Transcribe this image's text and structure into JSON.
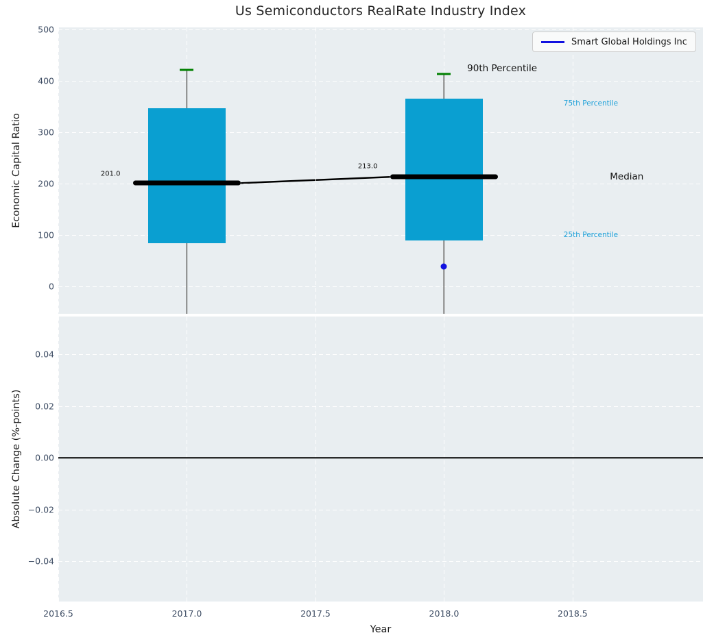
{
  "title": "Us Semiconductors RealRate Industry Index",
  "legend": {
    "label": "Smart Global Holdings Inc"
  },
  "colors": {
    "bar": "#0a9fd1",
    "percentile_cap": "#008000",
    "whisker": "#858585",
    "median": "#000000",
    "company_blue": "#1212e0",
    "cyan_text": "#1b9fd8",
    "axes_bg": "#e9eef1",
    "tick_text": "#3d4c63"
  },
  "chart_data": [
    {
      "type": "bar",
      "subplot": "top",
      "ylabel": "Economic Capital Ratio",
      "xlim": [
        2016.5,
        2019.007
      ],
      "ylim": [
        -53.3,
        504
      ],
      "yticks": {
        "values": [
          0,
          100,
          200,
          300,
          400,
          500
        ],
        "labels": [
          "0",
          "100",
          "200",
          "300",
          "400",
          "500"
        ]
      },
      "grid": true,
      "legend_position": "upper right",
      "years": [
        2017,
        2018
      ],
      "box_width_years": 0.3,
      "median_halfwidth_years": 0.21,
      "series": [
        {
          "name": "90th Percentile",
          "values": [
            422,
            413
          ]
        },
        {
          "name": "75th Percentile",
          "values": [
            347,
            365
          ]
        },
        {
          "name": "Median",
          "values": [
            201.0,
            213.0
          ]
        },
        {
          "name": "25th Percentile",
          "values": [
            84,
            89
          ]
        }
      ],
      "whiskers_clipped_below_axis": true,
      "company_series": {
        "name": "Smart Global Holdings Inc",
        "points": [
          {
            "x": 2018,
            "y": 39
          }
        ]
      },
      "median_trend_line": {
        "x": [
          2017.21,
          2017.79
        ],
        "y": [
          201.0,
          213.0
        ]
      },
      "annotations": [
        {
          "text": "201.0",
          "x": 2016.665,
          "y": 219,
          "style": "value"
        },
        {
          "text": "213.0",
          "x": 2017.665,
          "y": 233,
          "style": "value"
        },
        {
          "text": "90th Percentile",
          "x": 2018.09,
          "y": 424,
          "style": "black-large"
        },
        {
          "text": "75th Percentile",
          "x": 2018.465,
          "y": 356,
          "style": "cyan-small"
        },
        {
          "text": "Median",
          "x": 2018.645,
          "y": 213,
          "style": "black-large"
        },
        {
          "text": "25th Percentile",
          "x": 2018.465,
          "y": 100,
          "style": "cyan-small"
        }
      ]
    },
    {
      "type": "line",
      "subplot": "bottom",
      "ylabel": "Absolute Change (%-points)",
      "xlabel": "Year",
      "xlim": [
        2016.5,
        2019.007
      ],
      "ylim": [
        -0.0556,
        0.0546
      ],
      "yticks": {
        "values": [
          0.04,
          0.02,
          0.0,
          -0.02,
          -0.04
        ],
        "labels": [
          "0.04",
          "0.02",
          "0.00",
          "−0.02",
          "−0.04"
        ]
      },
      "grid": true,
      "zero_line": true,
      "series": []
    }
  ],
  "xticks": {
    "values": [
      2016.5,
      2017.0,
      2017.5,
      2018.0,
      2018.5
    ],
    "labels": [
      "2016.5",
      "2017.0",
      "2017.5",
      "2018.0",
      "2018.5"
    ]
  }
}
